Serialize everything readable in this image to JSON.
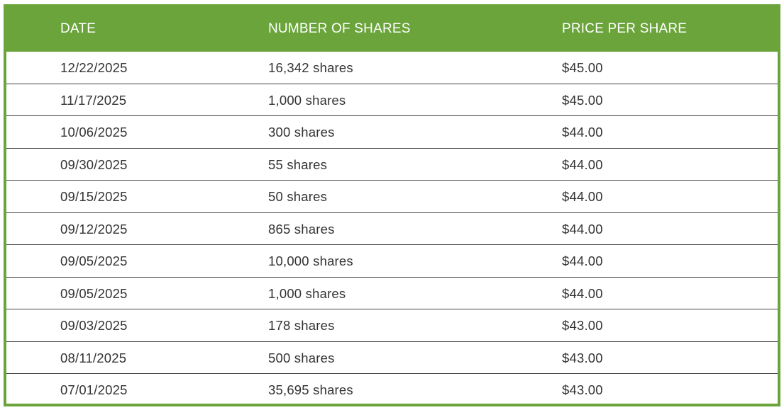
{
  "table": {
    "headers": [
      "DATE",
      "NUMBER OF SHARES",
      "PRICE PER SHARE"
    ],
    "rows": [
      [
        "12/22/2025",
        "16,342 shares",
        "$45.00"
      ],
      [
        "11/17/2025",
        "1,000 shares",
        "$45.00"
      ],
      [
        "10/06/2025",
        "300 shares",
        "$44.00"
      ],
      [
        "09/30/2025",
        "55 shares",
        "$44.00"
      ],
      [
        "09/15/2025",
        "50 shares",
        "$44.00"
      ],
      [
        "09/12/2025",
        "865 shares",
        "$44.00"
      ],
      [
        "09/05/2025",
        "10,000 shares",
        "$44.00"
      ],
      [
        "09/05/2025",
        "1,000 shares",
        "$44.00"
      ],
      [
        "09/03/2025",
        "178 shares",
        "$43.00"
      ],
      [
        "08/11/2025",
        "500 shares",
        "$43.00"
      ],
      [
        "07/01/2025",
        "35,695 shares",
        "$43.00"
      ]
    ]
  },
  "colors": {
    "header_bg": "#6aa43a",
    "header_text": "#ffffff",
    "row_text": "#333333",
    "divider": "#444444"
  }
}
